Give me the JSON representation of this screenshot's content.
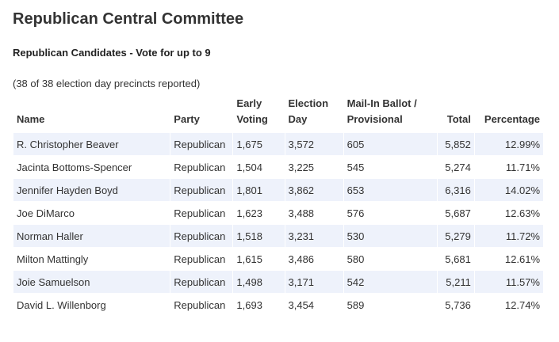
{
  "page": {
    "title": "Republican Central Committee",
    "subtitle": "Republican Candidates - Vote for up to 9",
    "precincts": "(38 of 38 election day precincts reported)"
  },
  "table": {
    "headers": {
      "name": "Name",
      "party": "Party",
      "early_line1": "Early",
      "early_line2": "Voting",
      "eday_line1": "Election",
      "eday_line2": "Day",
      "mail_line1": "Mail-In Ballot /",
      "mail_line2": "Provisional",
      "total": "Total",
      "percentage": "Percentage"
    },
    "rows": [
      {
        "name": "R. Christopher Beaver",
        "party": "Republican",
        "early": "1,675",
        "eday": "3,572",
        "mail": "605",
        "total": "5,852",
        "pct": "12.99%"
      },
      {
        "name": "Jacinta Bottoms-Spencer",
        "party": "Republican",
        "early": "1,504",
        "eday": "3,225",
        "mail": "545",
        "total": "5,274",
        "pct": "11.71%"
      },
      {
        "name": "Jennifer Hayden Boyd",
        "party": "Republican",
        "early": "1,801",
        "eday": "3,862",
        "mail": "653",
        "total": "6,316",
        "pct": "14.02%"
      },
      {
        "name": "Joe DiMarco",
        "party": "Republican",
        "early": "1,623",
        "eday": "3,488",
        "mail": "576",
        "total": "5,687",
        "pct": "12.63%"
      },
      {
        "name": "Norman Haller",
        "party": "Republican",
        "early": "1,518",
        "eday": "3,231",
        "mail": "530",
        "total": "5,279",
        "pct": "11.72%"
      },
      {
        "name": "Milton Mattingly",
        "party": "Republican",
        "early": "1,615",
        "eday": "3,486",
        "mail": "580",
        "total": "5,681",
        "pct": "12.61%"
      },
      {
        "name": "Joie Samuelson",
        "party": "Republican",
        "early": "1,498",
        "eday": "3,171",
        "mail": "542",
        "total": "5,211",
        "pct": "11.57%"
      },
      {
        "name": "David L. Willenborg",
        "party": "Republican",
        "early": "1,693",
        "eday": "3,454",
        "mail": "589",
        "total": "5,736",
        "pct": "12.74%"
      }
    ]
  }
}
